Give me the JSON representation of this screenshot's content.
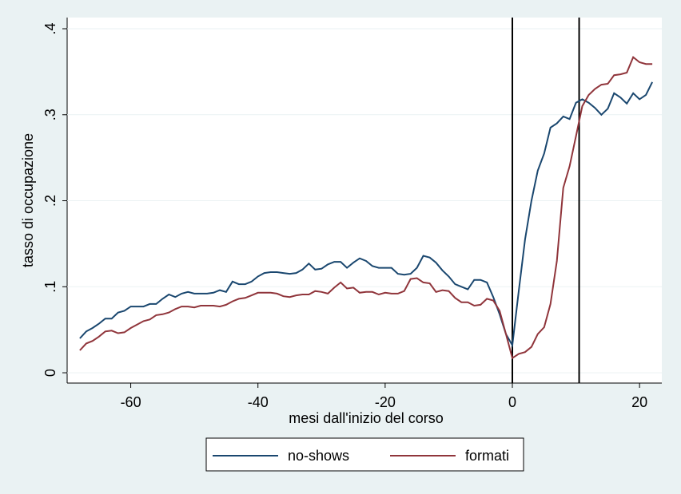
{
  "chart_data": {
    "type": "line",
    "xlabel": "mesi dall'inizio del corso",
    "ylabel": "tasso di occupazione",
    "x": [
      -68,
      -67,
      -66,
      -65,
      -64,
      -63,
      -62,
      -61,
      -60,
      -59,
      -58,
      -57,
      -56,
      -55,
      -54,
      -53,
      -52,
      -51,
      -50,
      -49,
      -48,
      -47,
      -46,
      -45,
      -44,
      -43,
      -42,
      -41,
      -40,
      -39,
      -38,
      -37,
      -36,
      -35,
      -34,
      -33,
      -32,
      -31,
      -30,
      -29,
      -28,
      -27,
      -26,
      -25,
      -24,
      -23,
      -22,
      -21,
      -20,
      -19,
      -18,
      -17,
      -16,
      -15,
      -14,
      -13,
      -12,
      -11,
      -10,
      -9,
      -8,
      -7,
      -6,
      -5,
      -4,
      -3,
      -2,
      -1,
      0,
      1,
      2,
      3,
      4,
      5,
      6,
      7,
      8,
      9,
      10,
      11,
      12,
      13,
      14,
      15,
      16,
      17,
      18,
      19,
      20,
      21,
      22
    ],
    "series": [
      {
        "name": "no-shows",
        "color": "#1a476f",
        "values": [
          0.04,
          0.048,
          0.052,
          0.057,
          0.063,
          0.063,
          0.07,
          0.072,
          0.077,
          0.077,
          0.077,
          0.08,
          0.08,
          0.086,
          0.091,
          0.088,
          0.092,
          0.094,
          0.092,
          0.092,
          0.092,
          0.093,
          0.096,
          0.094,
          0.106,
          0.103,
          0.103,
          0.106,
          0.112,
          0.116,
          0.117,
          0.117,
          0.116,
          0.115,
          0.116,
          0.12,
          0.127,
          0.12,
          0.121,
          0.126,
          0.129,
          0.129,
          0.122,
          0.128,
          0.133,
          0.13,
          0.124,
          0.122,
          0.122,
          0.122,
          0.115,
          0.114,
          0.115,
          0.122,
          0.136,
          0.134,
          0.128,
          0.119,
          0.112,
          0.103,
          0.1,
          0.097,
          0.108,
          0.108,
          0.105,
          0.088,
          0.068,
          0.045,
          0.032,
          0.095,
          0.155,
          0.2,
          0.235,
          0.255,
          0.285,
          0.29,
          0.298,
          0.295,
          0.314,
          0.318,
          0.314,
          0.308,
          0.3,
          0.307,
          0.325,
          0.32,
          0.313,
          0.325,
          0.318,
          0.323,
          0.338
        ]
      },
      {
        "name": "formati",
        "color": "#90353b",
        "values": [
          0.026,
          0.034,
          0.037,
          0.042,
          0.048,
          0.049,
          0.046,
          0.047,
          0.052,
          0.056,
          0.06,
          0.062,
          0.067,
          0.068,
          0.07,
          0.074,
          0.077,
          0.077,
          0.076,
          0.078,
          0.078,
          0.078,
          0.077,
          0.079,
          0.083,
          0.086,
          0.087,
          0.09,
          0.093,
          0.093,
          0.093,
          0.092,
          0.089,
          0.088,
          0.09,
          0.091,
          0.091,
          0.095,
          0.094,
          0.092,
          0.099,
          0.105,
          0.098,
          0.099,
          0.093,
          0.094,
          0.094,
          0.091,
          0.093,
          0.092,
          0.092,
          0.095,
          0.109,
          0.11,
          0.105,
          0.104,
          0.094,
          0.096,
          0.095,
          0.087,
          0.082,
          0.082,
          0.078,
          0.079,
          0.086,
          0.084,
          0.072,
          0.045,
          0.017,
          0.022,
          0.024,
          0.03,
          0.045,
          0.053,
          0.08,
          0.13,
          0.215,
          0.24,
          0.275,
          0.31,
          0.323,
          0.33,
          0.335,
          0.336,
          0.346,
          0.347,
          0.349,
          0.367,
          0.361,
          0.359,
          0.359
        ]
      }
    ],
    "xlim": [
      -70,
      23.5
    ],
    "ylim": [
      -0.012,
      0.413
    ],
    "xticks": [
      -60,
      -40,
      -20,
      0,
      20
    ],
    "yticks": [
      0,
      {
        "value": 0.1,
        "label": ".1"
      },
      {
        "value": 0.2,
        "label": ".2"
      },
      {
        "value": 0.3,
        "label": ".3"
      },
      {
        "value": 0.4,
        "label": ".4"
      }
    ],
    "vlines": [
      0,
      10.5
    ],
    "grid": true,
    "legend": "bottom"
  }
}
